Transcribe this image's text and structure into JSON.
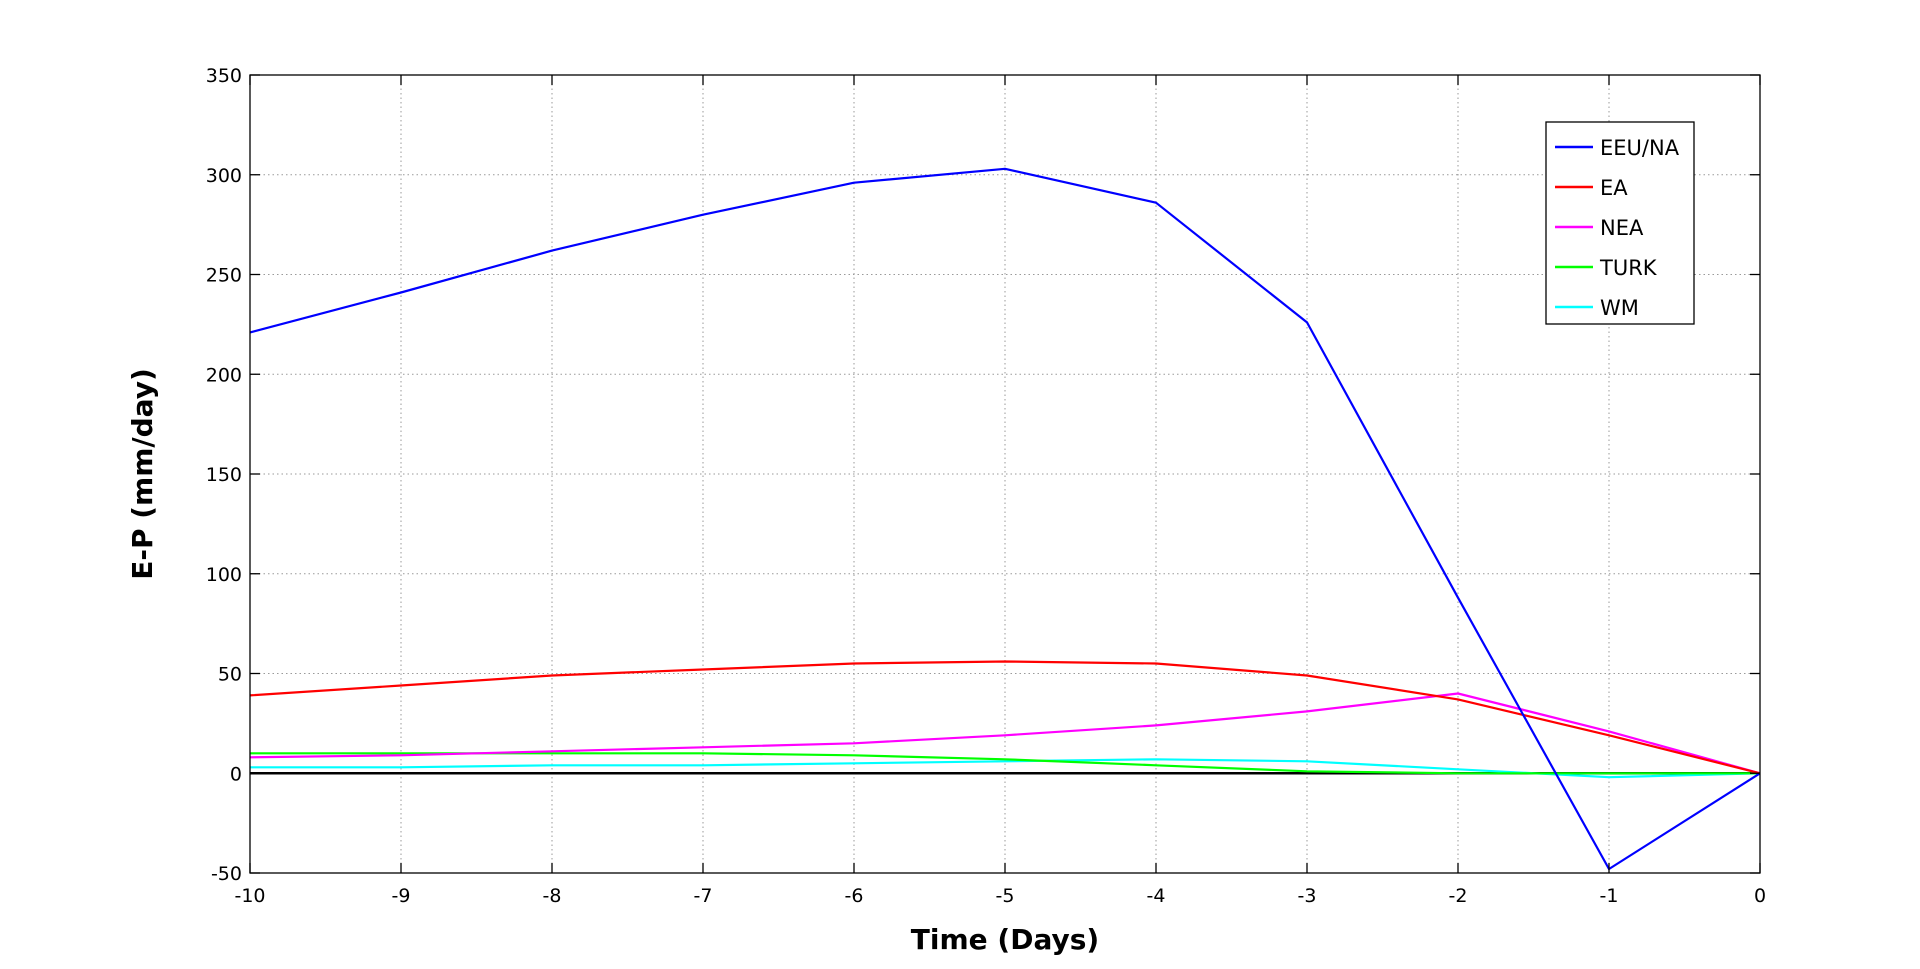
{
  "chart_data": {
    "type": "line",
    "title": "",
    "xlabel": "Time (Days)",
    "ylabel": "E-P (mm/day)",
    "xlim": [
      -10,
      0
    ],
    "ylim": [
      -50,
      350
    ],
    "xticks": [
      -10,
      -9,
      -8,
      -7,
      -6,
      -5,
      -4,
      -3,
      -2,
      -1,
      0
    ],
    "xtick_labels": [
      "-10",
      "-9",
      "-8",
      "-7",
      "-6",
      "-5",
      "-4",
      "-3",
      "-2",
      "-1",
      "0"
    ],
    "yticks": [
      -50,
      0,
      50,
      100,
      150,
      200,
      250,
      300,
      350
    ],
    "ytick_labels": [
      "-50",
      "0",
      "50",
      "100",
      "150",
      "200",
      "250",
      "300",
      "350"
    ],
    "grid": true,
    "legend_position": "top-right",
    "zero_line": {
      "value": 0,
      "color": "#000000"
    },
    "x": [
      -10,
      -9,
      -8,
      -7,
      -6,
      -5,
      -4,
      -3,
      -2,
      -1,
      0
    ],
    "series": [
      {
        "name": "EEU/NA",
        "color": "#0000ff",
        "values": [
          221,
          241,
          262,
          280,
          296,
          303,
          286,
          226,
          88,
          -48,
          0
        ]
      },
      {
        "name": "EA",
        "color": "#ff0000",
        "values": [
          39,
          44,
          49,
          52,
          55,
          56,
          55,
          49,
          37,
          19,
          0
        ]
      },
      {
        "name": "NEA",
        "color": "#ff00ff",
        "values": [
          8,
          9,
          11,
          13,
          15,
          19,
          24,
          31,
          40,
          21,
          0
        ]
      },
      {
        "name": "TURK",
        "color": "#00ff00",
        "values": [
          10,
          10,
          10,
          10,
          9,
          7,
          4,
          1,
          0,
          0,
          0
        ]
      },
      {
        "name": "WM",
        "color": "#00ffff",
        "values": [
          3,
          3,
          4,
          4,
          5,
          6,
          7,
          6,
          2,
          -2,
          0
        ]
      }
    ]
  }
}
